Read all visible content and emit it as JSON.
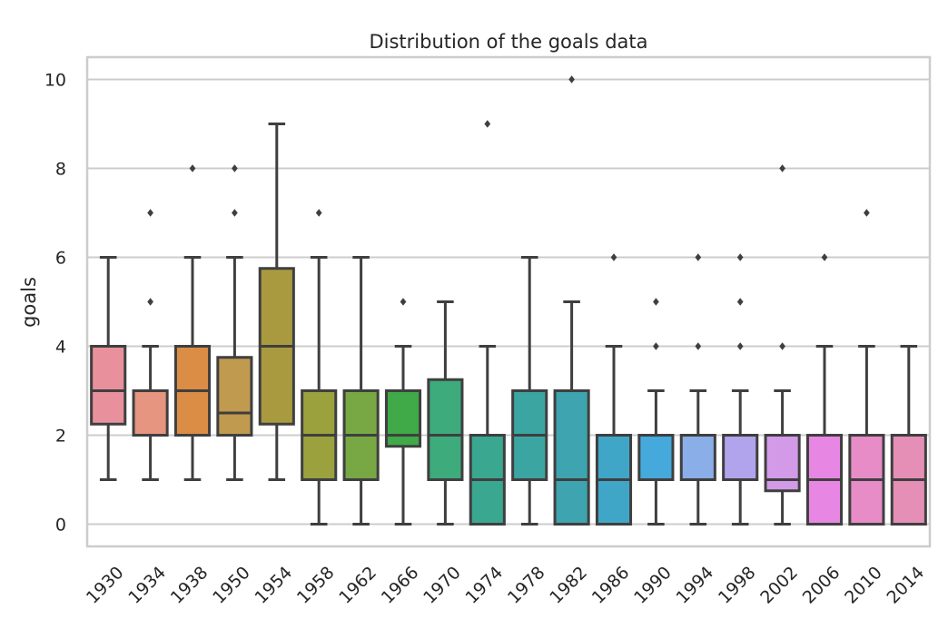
{
  "chart_data": {
    "type": "box",
    "title": "Distribution of the goals data",
    "xlabel": "",
    "ylabel": "goals",
    "ylim": [
      -0.5,
      10.5
    ],
    "yticks": [
      "0",
      "2",
      "4",
      "6",
      "8",
      "10"
    ],
    "grid": "horizontal",
    "categories": [
      "1930",
      "1934",
      "1938",
      "1950",
      "1954",
      "1958",
      "1962",
      "1966",
      "1970",
      "1974",
      "1978",
      "1982",
      "1986",
      "1990",
      "1994",
      "1998",
      "2002",
      "2006",
      "2010",
      "2014"
    ],
    "boxes": [
      {
        "category": "1930",
        "whislo": 1,
        "q1": 2.25,
        "median": 3,
        "q3": 4,
        "whishi": 6,
        "fliers": [],
        "color": "#e8919c"
      },
      {
        "category": "1934",
        "whislo": 1,
        "q1": 2,
        "median": 3,
        "q3": 3,
        "whishi": 4,
        "fliers": [
          5,
          7
        ],
        "color": "#e59580"
      },
      {
        "category": "1938",
        "whislo": 1,
        "q1": 2,
        "median": 3,
        "q3": 4,
        "whishi": 6,
        "fliers": [
          8
        ],
        "color": "#db8d45"
      },
      {
        "category": "1950",
        "whislo": 1,
        "q1": 2,
        "median": 2.5,
        "q3": 3.75,
        "whishi": 6,
        "fliers": [
          7,
          8
        ],
        "color": "#c09a4f"
      },
      {
        "category": "1954",
        "whislo": 1,
        "q1": 2.25,
        "median": 4,
        "q3": 5.75,
        "whishi": 9,
        "fliers": [],
        "color": "#aa9a3f"
      },
      {
        "category": "1958",
        "whislo": 0,
        "q1": 1,
        "median": 2,
        "q3": 3,
        "whishi": 6,
        "fliers": [
          7
        ],
        "color": "#9aa13d"
      },
      {
        "category": "1962",
        "whislo": 0,
        "q1": 1,
        "median": 2,
        "q3": 3,
        "whishi": 6,
        "fliers": [],
        "color": "#78a844"
      },
      {
        "category": "1966",
        "whislo": 0,
        "q1": 1.75,
        "median": 2,
        "q3": 3,
        "whishi": 4,
        "fliers": [
          5
        ],
        "color": "#3faa47"
      },
      {
        "category": "1970",
        "whislo": 0,
        "q1": 1,
        "median": 2,
        "q3": 3.25,
        "whishi": 5,
        "fliers": [],
        "color": "#3dab7c"
      },
      {
        "category": "1974",
        "whislo": 0,
        "q1": 0,
        "median": 1,
        "q3": 2,
        "whishi": 4,
        "fliers": [
          9
        ],
        "color": "#3aa790"
      },
      {
        "category": "1978",
        "whislo": 0,
        "q1": 1,
        "median": 2,
        "q3": 3,
        "whishi": 6,
        "fliers": [],
        "color": "#3ba6a1"
      },
      {
        "category": "1982",
        "whislo": 0,
        "q1": 0,
        "median": 1,
        "q3": 3,
        "whishi": 5,
        "fliers": [
          10
        ],
        "color": "#3da4b0"
      },
      {
        "category": "1986",
        "whislo": 0,
        "q1": 0,
        "median": 1,
        "q3": 2,
        "whishi": 4,
        "fliers": [
          6
        ],
        "color": "#40a6c8"
      },
      {
        "category": "1990",
        "whislo": 0,
        "q1": 1,
        "median": 1,
        "q3": 2,
        "whishi": 3,
        "fliers": [
          4,
          5
        ],
        "color": "#45a9dc"
      },
      {
        "category": "1994",
        "whislo": 0,
        "q1": 1,
        "median": 1,
        "q3": 2,
        "whishi": 3,
        "fliers": [
          4,
          6
        ],
        "color": "#8aaee8"
      },
      {
        "category": "1998",
        "whislo": 0,
        "q1": 1,
        "median": 1,
        "q3": 2,
        "whishi": 3,
        "fliers": [
          4,
          5,
          6
        ],
        "color": "#b1a4ec"
      },
      {
        "category": "2002",
        "whislo": 0,
        "q1": 0.75,
        "median": 1,
        "q3": 2,
        "whishi": 3,
        "fliers": [
          4,
          8
        ],
        "color": "#d39ae8"
      },
      {
        "category": "2006",
        "whislo": 0,
        "q1": 0,
        "median": 1,
        "q3": 2,
        "whishi": 4,
        "fliers": [
          6
        ],
        "color": "#e887e3"
      },
      {
        "category": "2010",
        "whislo": 0,
        "q1": 0,
        "median": 1,
        "q3": 2,
        "whishi": 4,
        "fliers": [
          7
        ],
        "color": "#e88cc7"
      },
      {
        "category": "2014",
        "whislo": 0,
        "q1": 0,
        "median": 1,
        "q3": 2,
        "whishi": 4,
        "fliers": [],
        "color": "#e68fb6"
      }
    ],
    "colors": {
      "line": "#3f3f3f",
      "grid": "#cccccc",
      "spine": "#cccccc",
      "text": "#262626"
    }
  }
}
